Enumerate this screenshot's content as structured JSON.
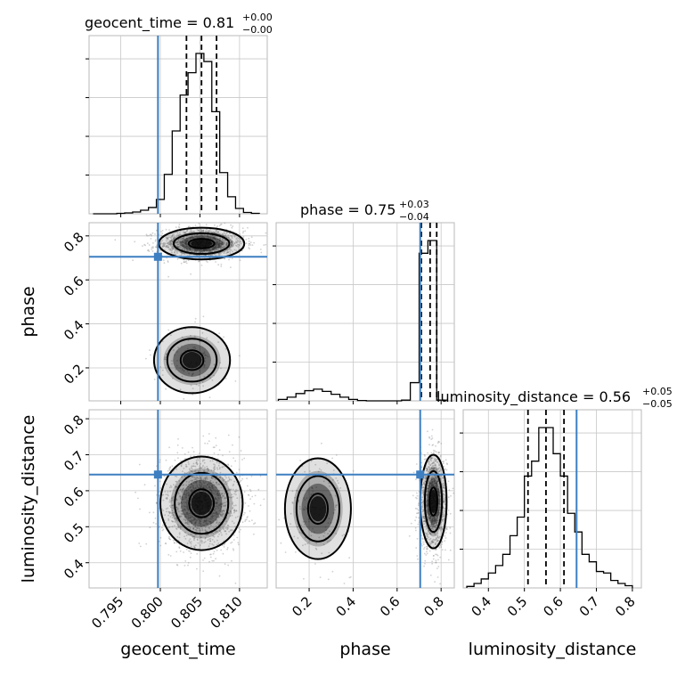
{
  "chart_data": {
    "type": "corner",
    "parameters": [
      {
        "key": "geocent_time",
        "label": "geocent_time",
        "truth": 0.7997,
        "median": 0.8052,
        "quantiles": [
          0.8033,
          0.8052,
          0.8071
        ],
        "title": {
          "main": "geocent_time = 0.81",
          "sup": "+0.00",
          "sub": "−0.00"
        },
        "range": [
          0.791,
          0.8135
        ],
        "ticks": [
          0.795,
          0.8,
          0.805,
          0.81
        ],
        "tick_labels": [
          "0.795",
          "0.800",
          "0.805",
          "0.810"
        ],
        "hist": {
          "edges": [
            0.7915,
            0.7925,
            0.7935,
            0.7945,
            0.7955,
            0.7965,
            0.7975,
            0.7985,
            0.7995,
            0.8005,
            0.8015,
            0.8025,
            0.8035,
            0.8045,
            0.8055,
            0.8065,
            0.8075,
            0.8085,
            0.8095,
            0.8105,
            0.8115,
            0.8125
          ],
          "counts": [
            0,
            0,
            0,
            1,
            2,
            4,
            8,
            14,
            32,
            88,
            185,
            265,
            315,
            358,
            340,
            228,
            92,
            38,
            12,
            3,
            1
          ]
        }
      },
      {
        "key": "phase",
        "label": "phase",
        "truth": 0.705,
        "median": 0.75,
        "quantiles": [
          0.71,
          0.75,
          0.78
        ],
        "title": {
          "main": "phase = 0.75",
          "sup": "+0.03",
          "sub": "−0.04"
        },
        "range": [
          0.05,
          0.86
        ],
        "ticks": [
          0.2,
          0.4,
          0.6,
          0.8
        ],
        "tick_labels": [
          "0.2",
          "0.4",
          "0.6",
          "0.8"
        ],
        "hist": {
          "edges": [
            0.06,
            0.1,
            0.14,
            0.18,
            0.22,
            0.26,
            0.3,
            0.34,
            0.38,
            0.42,
            0.46,
            0.5,
            0.54,
            0.58,
            0.62,
            0.66,
            0.7,
            0.74,
            0.78,
            0.82
          ],
          "counts": [
            4,
            10,
            20,
            28,
            32,
            26,
            18,
            10,
            4,
            1,
            0,
            0,
            0,
            0,
            2,
            50,
            405,
            440,
            2
          ]
        }
      },
      {
        "key": "luminosity_distance",
        "label": "luminosity_distance",
        "truth": 0.645,
        "median": 0.56,
        "quantiles": [
          0.51,
          0.56,
          0.61
        ],
        "title": {
          "main": "luminosity_distance = 0.56",
          "sup": "+0.05",
          "sub": "−0.05"
        },
        "range": [
          0.33,
          0.825
        ],
        "ticks": [
          0.4,
          0.5,
          0.6,
          0.7,
          0.8
        ],
        "tick_labels": [
          "0.4",
          "0.5",
          "0.6",
          "0.7",
          "0.8"
        ],
        "hist": {
          "edges": [
            0.34,
            0.36,
            0.38,
            0.4,
            0.42,
            0.44,
            0.46,
            0.48,
            0.5,
            0.52,
            0.54,
            0.56,
            0.58,
            0.6,
            0.62,
            0.64,
            0.66,
            0.68,
            0.7,
            0.72,
            0.74,
            0.76,
            0.78,
            0.8
          ],
          "counts": [
            2,
            6,
            12,
            20,
            30,
            45,
            70,
            95,
            150,
            170,
            215,
            215,
            180,
            150,
            100,
            75,
            45,
            35,
            22,
            20,
            10,
            6,
            3
          ]
        }
      }
    ],
    "pairs": [
      {
        "x": "geocent_time",
        "y": "phase",
        "clusters": [
          {
            "center": [
              0.8052,
              0.765
            ],
            "sd": [
              0.0027,
              0.036
            ],
            "weight": 0.9
          },
          {
            "center": [
              0.804,
              0.235
            ],
            "sd": [
              0.0024,
              0.075
            ],
            "weight": 0.1
          }
        ]
      },
      {
        "x": "geocent_time",
        "y": "luminosity_distance",
        "clusters": [
          {
            "center": [
              0.8052,
              0.565
            ],
            "sd": [
              0.0026,
              0.065
            ],
            "weight": 1.0
          }
        ]
      },
      {
        "x": "phase",
        "y": "luminosity_distance",
        "clusters": [
          {
            "center": [
              0.765,
              0.57
            ],
            "sd": [
              0.03,
              0.065
            ],
            "weight": 0.88
          },
          {
            "center": [
              0.24,
              0.55
            ],
            "sd": [
              0.075,
              0.07
            ],
            "weight": 0.12
          }
        ]
      }
    ],
    "grid": true
  }
}
